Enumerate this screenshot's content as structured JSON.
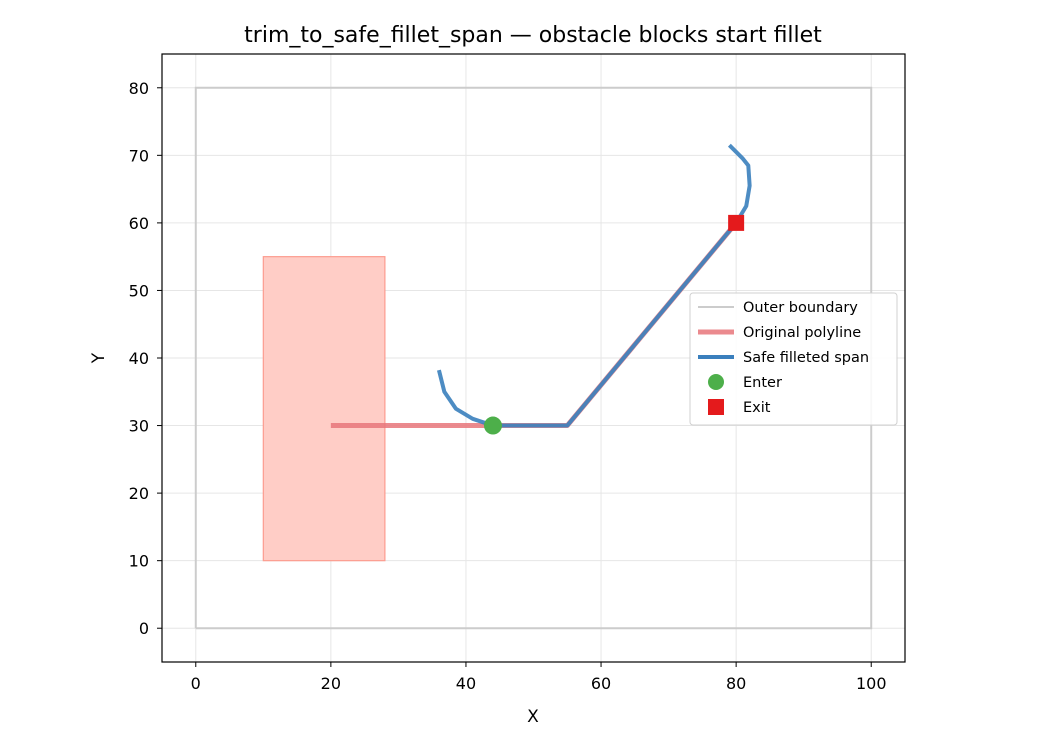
{
  "colors": {
    "boundary": "#cccccc",
    "obstacle_fill": "#ffcdc6",
    "obstacle_edge": "#fc9c8f",
    "original": "#e8767a",
    "safe": "#3a7fbd",
    "enter": "#4daf4a",
    "exit": "#e41a1c",
    "grid": "#e6e6e6"
  },
  "chart_data": {
    "type": "line",
    "title": "trim_to_safe_fillet_span — obstacle blocks start fillet",
    "xlabel": "X",
    "ylabel": "Y",
    "xlim": [
      -5,
      105
    ],
    "ylim": [
      -5,
      85
    ],
    "xticks": [
      0,
      20,
      40,
      60,
      80,
      100
    ],
    "yticks": [
      0,
      10,
      20,
      30,
      40,
      50,
      60,
      70,
      80
    ],
    "grid": true,
    "legend_position": "right",
    "obstacle": {
      "x0": 10,
      "y0": 10,
      "x1": 28,
      "y1": 55
    },
    "series": [
      {
        "name": "Outer boundary",
        "x": [
          0,
          100,
          100,
          0,
          0
        ],
        "y": [
          0,
          0,
          80,
          80,
          0
        ]
      },
      {
        "name": "Original polyline",
        "x": [
          20,
          55,
          80
        ],
        "y": [
          30,
          30,
          60
        ]
      },
      {
        "name": "Safe filleted span",
        "x": [
          36,
          36.8,
          38.5,
          41,
          44,
          55,
          80,
          81.5,
          82,
          81.8,
          81,
          79
        ],
        "y": [
          38.2,
          35,
          32.5,
          31,
          30,
          30,
          60,
          62.5,
          65.5,
          68.5,
          69.5,
          71.5
        ]
      },
      {
        "name": "Enter",
        "x": [
          44
        ],
        "y": [
          30
        ]
      },
      {
        "name": "Exit",
        "x": [
          80
        ],
        "y": [
          60
        ]
      }
    ]
  }
}
